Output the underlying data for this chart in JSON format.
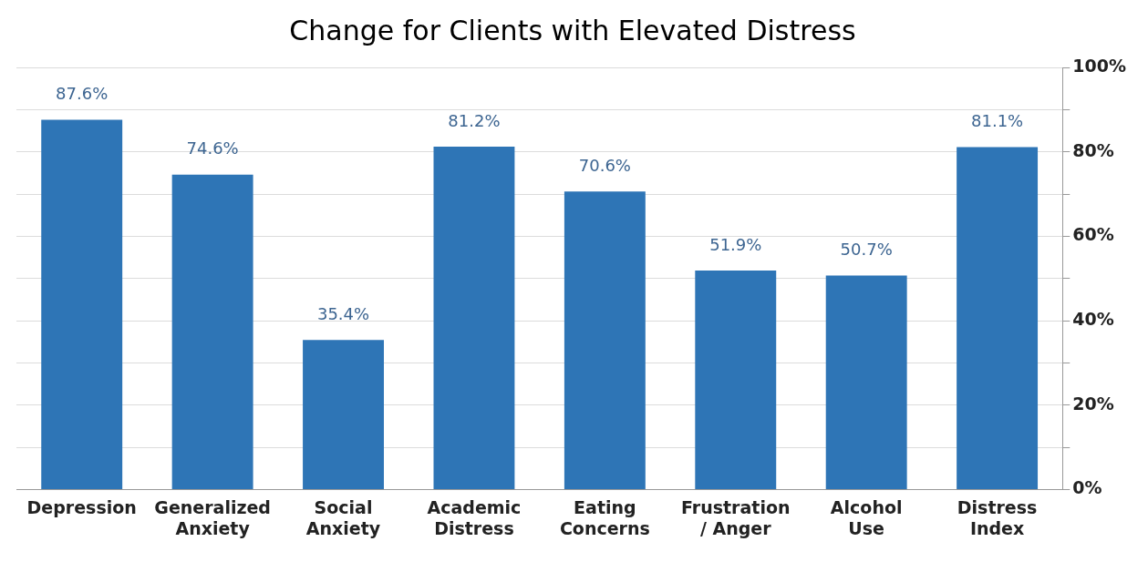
{
  "chart_data": {
    "type": "bar",
    "title": "Change for Clients with Elevated Distress",
    "categories": [
      "Depression",
      "Generalized Anxiety",
      "Social Anxiety",
      "Academic Distress",
      "Eating Concerns",
      "Frustration / Anger",
      "Alcohol Use",
      "Distress Index"
    ],
    "values": [
      87.6,
      74.6,
      35.4,
      81.2,
      70.6,
      51.9,
      50.7,
      81.1
    ],
    "value_labels": [
      "87.6%",
      "74.6%",
      "35.4%",
      "81.2%",
      "70.6%",
      "51.9%",
      "50.7%",
      "81.1%"
    ],
    "color": "#2e75b6",
    "ylim": [
      0,
      100
    ],
    "yticks": [
      {
        "value": 0,
        "label": "0%"
      },
      {
        "value": 10,
        "label": null
      },
      {
        "value": 20,
        "label": "20%"
      },
      {
        "value": 30,
        "label": null
      },
      {
        "value": 40,
        "label": "40%"
      },
      {
        "value": 50,
        "label": null
      },
      {
        "value": 60,
        "label": "60%"
      },
      {
        "value": 70,
        "label": null
      },
      {
        "value": 80,
        "label": "80%"
      },
      {
        "value": 90,
        "label": null
      },
      {
        "value": 100,
        "label": "100%"
      }
    ],
    "grid": "y",
    "legend": false
  }
}
